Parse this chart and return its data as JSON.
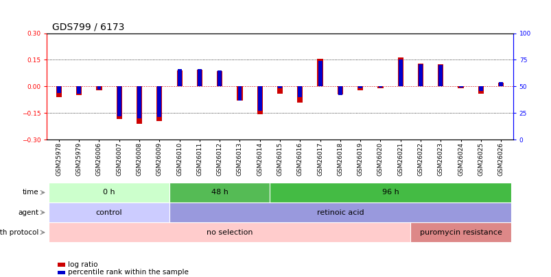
{
  "title": "GDS799 / 6173",
  "samples": [
    "GSM25978",
    "GSM25979",
    "GSM26006",
    "GSM26007",
    "GSM26008",
    "GSM26009",
    "GSM26010",
    "GSM26011",
    "GSM26012",
    "GSM26013",
    "GSM26014",
    "GSM26015",
    "GSM26016",
    "GSM26017",
    "GSM26018",
    "GSM26019",
    "GSM26020",
    "GSM26021",
    "GSM26022",
    "GSM26023",
    "GSM26024",
    "GSM26025",
    "GSM26026"
  ],
  "log_ratio": [
    -0.06,
    -0.05,
    -0.02,
    -0.185,
    -0.21,
    -0.195,
    0.09,
    0.095,
    0.085,
    -0.08,
    -0.155,
    -0.04,
    -0.09,
    0.155,
    -0.045,
    -0.02,
    -0.01,
    0.165,
    0.13,
    0.125,
    -0.01,
    -0.04,
    0.02
  ],
  "percentile": [
    44,
    43,
    47,
    22,
    20,
    21,
    66,
    66,
    65,
    37,
    27,
    48,
    40,
    74,
    42,
    48,
    49,
    75,
    71,
    70,
    49,
    46,
    54
  ],
  "bar_color": "#cc0000",
  "pct_color": "#0000cc",
  "ylim_left": [
    -0.3,
    0.3
  ],
  "ylim_right": [
    0,
    100
  ],
  "yticks_left": [
    -0.3,
    -0.15,
    0.0,
    0.15,
    0.3
  ],
  "yticks_right": [
    0,
    25,
    50,
    75,
    100
  ],
  "hlines": [
    -0.15,
    0.15
  ],
  "time_groups": [
    {
      "label": "0 h",
      "start": 0,
      "end": 6,
      "color": "#ccffcc"
    },
    {
      "label": "48 h",
      "start": 6,
      "end": 11,
      "color": "#55bb55"
    },
    {
      "label": "96 h",
      "start": 11,
      "end": 23,
      "color": "#44bb44"
    }
  ],
  "agent_groups": [
    {
      "label": "control",
      "start": 0,
      "end": 6,
      "color": "#ccccff"
    },
    {
      "label": "retinoic acid",
      "start": 6,
      "end": 23,
      "color": "#9999dd"
    }
  ],
  "growth_groups": [
    {
      "label": "no selection",
      "start": 0,
      "end": 18,
      "color": "#ffcccc"
    },
    {
      "label": "puromycin resistance",
      "start": 18,
      "end": 23,
      "color": "#dd8888"
    }
  ],
  "row_labels": [
    "time",
    "agent",
    "growth protocol"
  ],
  "legend_items": [
    {
      "label": "log ratio",
      "color": "#cc0000"
    },
    {
      "label": "percentile rank within the sample",
      "color": "#0000cc"
    }
  ],
  "title_fontsize": 10,
  "tick_fontsize": 6.5,
  "label_fontsize": 7.5,
  "annotation_fontsize": 8
}
